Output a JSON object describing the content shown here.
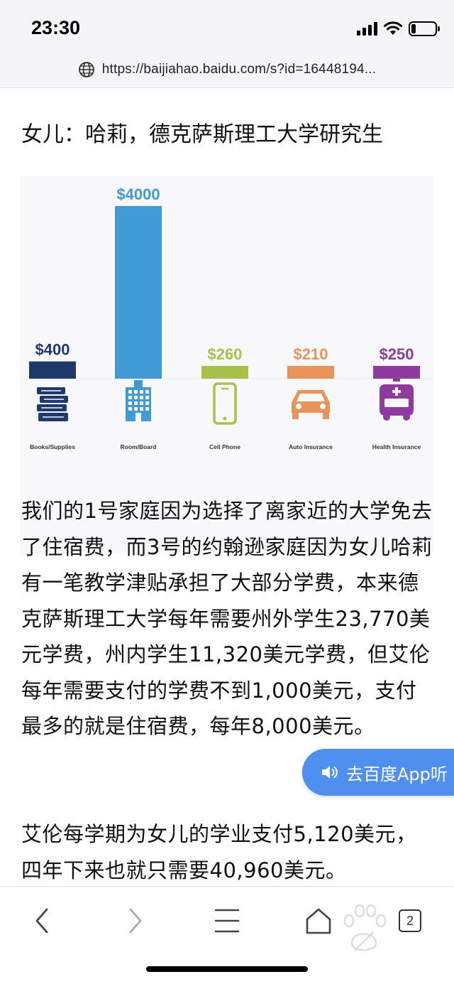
{
  "status_bar": {
    "time": "23:30",
    "battery_level": 0.2,
    "icons": [
      "signal-icon",
      "wifi-icon",
      "battery-icon"
    ]
  },
  "browser": {
    "url": "https://baijiahao.baidu.com/s?id=16448194...",
    "url_icon": "globe-icon"
  },
  "article": {
    "caption": "女儿：哈莉，德克萨斯理工大学研究生",
    "paragraphs": [
      "我们的1号家庭因为选择了离家近的大学免去了住宿费，而3号的约翰逊家庭因为女儿哈莉有一笔教学津贴承担了大部分学费，本来德克萨斯理工大学每年需要州外学生23,770美元学费，州内学生11,320美元学费，但艾伦每年需要支付的学费不到1,000美元，支付最多的就是住宿费，每年8,000美元。",
      "艾伦每学期为女儿的学业支付5,120美元，四年下来也就只需要40,960美元。"
    ]
  },
  "listen_button": {
    "label": "去百度App听",
    "icon": "speaker-icon"
  },
  "toolbar": {
    "back_icon": "back-arrow-icon",
    "forward_icon": "forward-arrow-icon",
    "menu_icon": "menu-icon",
    "home_icon": "home-icon",
    "tab_count": "2"
  },
  "chart_data": {
    "type": "bar",
    "categories": [
      "Books/Supplies",
      "Room/Board",
      "Cell Phone",
      "Auto Insurance",
      "Health Insurance"
    ],
    "values": [
      400,
      4000,
      260,
      210,
      250
    ],
    "value_labels": [
      "$400",
      "$4000",
      "$260",
      "$210",
      "$250"
    ],
    "colors": [
      "#1d3a6b",
      "#3f9ad6",
      "#a6c24a",
      "#e8935a",
      "#8e3a9e"
    ],
    "icons": [
      "books-icon",
      "building-icon",
      "cell-phone-icon",
      "car-icon",
      "ambulance-icon"
    ],
    "title": "",
    "xlabel": "",
    "ylabel": "",
    "ylim": [
      0,
      4000
    ]
  }
}
